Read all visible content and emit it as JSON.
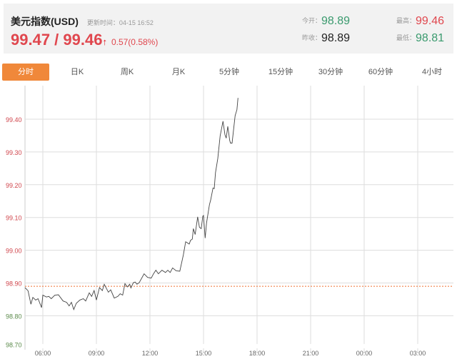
{
  "header": {
    "title": "美元指数(USD)",
    "update_label": "更新时间：04-15 16:52",
    "price": "99.47 / 99.46",
    "arrow": "↑",
    "change": "0.57(0.58%)",
    "open_label": "今开：",
    "open": "98.89",
    "prev_close_label": "昨收：",
    "prev_close": "98.89",
    "high_label": "最高：",
    "high": "99.46",
    "low_label": "最低：",
    "low": "98.81"
  },
  "tabs": [
    "分时",
    "日K",
    "周K",
    "月K",
    "5分钟",
    "15分钟",
    "30分钟",
    "60分钟",
    "4小时"
  ],
  "colors": {
    "accent": "#f0883a",
    "up": "#e0474e",
    "down": "#3a9a6e"
  },
  "chart_data": {
    "type": "line",
    "title": "",
    "xlabel": "",
    "ylabel": "",
    "ylim": [
      98.7,
      99.5
    ],
    "xlim": [
      5,
      29
    ],
    "yticks": [
      {
        "v": 99.4,
        "label": "99.40"
      },
      {
        "v": 99.3,
        "label": "99.30"
      },
      {
        "v": 99.2,
        "label": "99.20"
      },
      {
        "v": 99.1,
        "label": "99.10"
      },
      {
        "v": 99.0,
        "label": "99.00"
      },
      {
        "v": 98.9,
        "label": "98.90"
      },
      {
        "v": 98.8,
        "label": "98.80"
      },
      {
        "v": 98.7,
        "label": "98.70"
      }
    ],
    "xticks": [
      {
        "v": 6,
        "label": "06:00"
      },
      {
        "v": 9,
        "label": "09:00"
      },
      {
        "v": 12,
        "label": "12:00"
      },
      {
        "v": 15,
        "label": "15:00"
      },
      {
        "v": 18,
        "label": "18:00"
      },
      {
        "v": 21,
        "label": "21:00"
      },
      {
        "v": 24,
        "label": "00:00"
      },
      {
        "v": 27,
        "label": "03:00"
      }
    ],
    "reference_line": 98.89,
    "series": [
      {
        "name": "price",
        "points": [
          [
            5.0,
            98.886
          ],
          [
            5.17,
            98.876
          ],
          [
            5.33,
            98.835
          ],
          [
            5.44,
            98.856
          ],
          [
            5.6,
            98.848
          ],
          [
            5.73,
            98.852
          ],
          [
            5.93,
            98.825
          ],
          [
            6.0,
            98.863
          ],
          [
            6.2,
            98.857
          ],
          [
            6.33,
            98.859
          ],
          [
            6.47,
            98.852
          ],
          [
            6.67,
            98.863
          ],
          [
            6.87,
            98.864
          ],
          [
            7.13,
            98.845
          ],
          [
            7.33,
            98.841
          ],
          [
            7.47,
            98.83
          ],
          [
            7.6,
            98.841
          ],
          [
            7.73,
            98.819
          ],
          [
            7.87,
            98.838
          ],
          [
            8.07,
            98.848
          ],
          [
            8.27,
            98.852
          ],
          [
            8.4,
            98.845
          ],
          [
            8.6,
            98.87
          ],
          [
            8.73,
            98.859
          ],
          [
            8.87,
            98.877
          ],
          [
            9.0,
            98.848
          ],
          [
            9.17,
            98.886
          ],
          [
            9.33,
            98.877
          ],
          [
            9.44,
            98.896
          ],
          [
            9.67,
            98.872
          ],
          [
            9.8,
            98.879
          ],
          [
            10.0,
            98.854
          ],
          [
            10.2,
            98.859
          ],
          [
            10.33,
            98.867
          ],
          [
            10.47,
            98.863
          ],
          [
            10.6,
            98.898
          ],
          [
            10.73,
            98.888
          ],
          [
            10.87,
            98.896
          ],
          [
            10.93,
            98.885
          ],
          [
            11.07,
            98.901
          ],
          [
            11.17,
            98.903
          ],
          [
            11.27,
            98.896
          ],
          [
            11.4,
            98.901
          ],
          [
            11.67,
            98.928
          ],
          [
            11.87,
            98.917
          ],
          [
            12.07,
            98.915
          ],
          [
            12.2,
            98.928
          ],
          [
            12.33,
            98.939
          ],
          [
            12.47,
            98.928
          ],
          [
            12.67,
            98.939
          ],
          [
            12.87,
            98.932
          ],
          [
            13.0,
            98.939
          ],
          [
            13.13,
            98.932
          ],
          [
            13.27,
            98.946
          ],
          [
            13.47,
            98.937
          ],
          [
            13.67,
            98.936
          ],
          [
            13.87,
            98.986
          ],
          [
            14.0,
            99.026
          ],
          [
            14.2,
            99.019
          ],
          [
            14.27,
            99.03
          ],
          [
            14.37,
            99.034
          ],
          [
            14.43,
            99.066
          ],
          [
            14.53,
            99.048
          ],
          [
            14.67,
            99.102
          ],
          [
            14.77,
            99.07
          ],
          [
            14.87,
            99.066
          ],
          [
            14.96,
            99.104
          ],
          [
            15.0,
            99.106
          ],
          [
            15.09,
            99.037
          ],
          [
            15.17,
            99.084
          ],
          [
            15.33,
            99.139
          ],
          [
            15.4,
            99.153
          ],
          [
            15.53,
            99.19
          ],
          [
            15.6,
            99.188
          ],
          [
            15.67,
            99.237
          ],
          [
            15.8,
            99.28
          ],
          [
            15.93,
            99.349
          ],
          [
            16.09,
            99.394
          ],
          [
            16.2,
            99.353
          ],
          [
            16.27,
            99.342
          ],
          [
            16.36,
            99.378
          ],
          [
            16.47,
            99.335
          ],
          [
            16.51,
            99.327
          ],
          [
            16.6,
            99.327
          ],
          [
            16.77,
            99.411
          ],
          [
            16.87,
            99.429
          ],
          [
            16.93,
            99.465
          ]
        ]
      }
    ]
  }
}
